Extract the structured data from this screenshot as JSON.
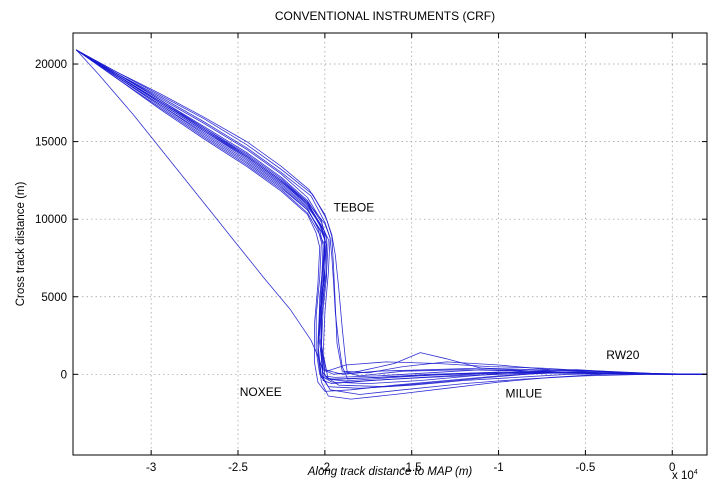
{
  "chart_data": {
    "type": "line",
    "title": "CONVENTIONAL INSTRUMENTS (CRF)",
    "xlabel": "Along track distance to MAP (m)",
    "ylabel": "Cross track distance (m)",
    "x_multiplier_label": "x 10",
    "x_multiplier_exponent": "4",
    "xlim": [
      -34500,
      2000
    ],
    "ylim": [
      -5200,
      22000
    ],
    "x_ticks": [
      -30000,
      -25000,
      -20000,
      -15000,
      -10000,
      -5000,
      0
    ],
    "x_tick_labels": [
      "-3",
      "-2.5",
      "-2",
      "-1.5",
      "-1",
      "-0.5",
      "0"
    ],
    "y_ticks": [
      0,
      5000,
      10000,
      15000,
      20000
    ],
    "y_tick_labels": [
      "0",
      "5000",
      "10000",
      "15000",
      "20000"
    ],
    "grid": true,
    "line_color": "#1a1ad0",
    "annotations": [
      {
        "text": "TEBOE",
        "x": -19500,
        "y": 10500
      },
      {
        "text": "NOXEE",
        "x": -24900,
        "y": -1400
      },
      {
        "text": "MILUE",
        "x": -9600,
        "y": -1500
      },
      {
        "text": "RW20",
        "x": -3800,
        "y": 1000
      }
    ],
    "series": [
      {
        "x": [
          -34300,
          -32000,
          -29500,
          -27000,
          -24500,
          -22500,
          -21000,
          -20200,
          -20000,
          -20100,
          -20300,
          -20400,
          -20200,
          -19500,
          -17000,
          -14000,
          -11000,
          -8000,
          -5000,
          -2000,
          0,
          2000
        ],
        "y": [
          20900,
          19300,
          17600,
          15800,
          14000,
          12400,
          11000,
          9600,
          8600,
          6800,
          4500,
          2000,
          -200,
          -300,
          -200,
          -50,
          50,
          100,
          80,
          40,
          0,
          0
        ]
      },
      {
        "x": [
          -34300,
          -32000,
          -29500,
          -27000,
          -24500,
          -22500,
          -21000,
          -20300,
          -20000,
          -20000,
          -20200,
          -20200,
          -20100,
          -19600,
          -17500,
          -14000,
          -10000,
          -6000,
          -2000,
          0,
          2000
        ],
        "y": [
          20900,
          19100,
          17200,
          15300,
          13500,
          11900,
          10400,
          9000,
          8300,
          6000,
          3500,
          1000,
          -400,
          -600,
          -400,
          -200,
          0,
          100,
          50,
          0,
          0
        ]
      },
      {
        "x": [
          -34300,
          -32000,
          -29500,
          -27000,
          -24500,
          -22500,
          -20800,
          -20000,
          -19700,
          -19800,
          -20000,
          -20100,
          -19800,
          -18500,
          -16000,
          -13000,
          -10000,
          -7000,
          -4000,
          -1000,
          2000
        ],
        "y": [
          20900,
          19400,
          17900,
          16300,
          14600,
          13000,
          11500,
          9800,
          8800,
          6500,
          4000,
          1200,
          -300,
          -500,
          -300,
          -100,
          100,
          150,
          100,
          30,
          0
        ]
      },
      {
        "x": [
          -34300,
          -32000,
          -29500,
          -27000,
          -24500,
          -22500,
          -21000,
          -20400,
          -20200,
          -20300,
          -20500,
          -20500,
          -20300,
          -19800,
          -18000,
          -15000,
          -12000,
          -9000,
          -6000,
          -3000,
          0,
          2000
        ],
        "y": [
          20900,
          19200,
          17400,
          15600,
          13800,
          12200,
          10700,
          9400,
          8500,
          6200,
          3800,
          1500,
          0,
          -800,
          -900,
          -700,
          -400,
          -200,
          0,
          50,
          0,
          0
        ]
      },
      {
        "x": [
          -34300,
          -32000,
          -29500,
          -27000,
          -24500,
          -22500,
          -21000,
          -20300,
          -20000,
          -20100,
          -20300,
          -20300,
          -20000,
          -19000,
          -17000,
          -14000,
          -11000,
          -8000,
          -5000,
          -2000,
          0,
          2000
        ],
        "y": [
          20900,
          19300,
          17600,
          15900,
          14100,
          12500,
          11100,
          9700,
          8900,
          7200,
          5000,
          2500,
          300,
          0,
          200,
          300,
          400,
          300,
          200,
          100,
          0,
          0
        ]
      },
      {
        "x": [
          -34300,
          -32000,
          -29500,
          -27000,
          -24500,
          -22500,
          -21000,
          -20200,
          -19900,
          -19900,
          -20100,
          -20200,
          -20100,
          -19700,
          -18000,
          -15500,
          -12000,
          -8500,
          -5000,
          -1500,
          2000
        ],
        "y": [
          20900,
          19200,
          17300,
          15400,
          13600,
          12000,
          10600,
          9200,
          8400,
          6300,
          4200,
          1800,
          -200,
          -1000,
          -1300,
          -1000,
          -600,
          -300,
          -100,
          0,
          0
        ]
      },
      {
        "x": [
          -34300,
          -32000,
          -29500,
          -27000,
          -24500,
          -22500,
          -21000,
          -20200,
          -20000,
          -20000,
          -20200,
          -20300,
          -20100,
          -19400,
          -17000,
          -14000,
          -11000,
          -8000,
          -5000,
          -2000,
          0,
          2000
        ],
        "y": [
          20900,
          19400,
          17800,
          16200,
          14500,
          12900,
          11400,
          9900,
          9000,
          6900,
          4600,
          2100,
          -100,
          -200,
          -100,
          100,
          300,
          200,
          100,
          50,
          0,
          0
        ]
      },
      {
        "x": [
          -34300,
          -32000,
          -29500,
          -27000,
          -24500,
          -22500,
          -21000,
          -20500,
          -20300,
          -20400,
          -20600,
          -20600,
          -20400,
          -20000,
          -18500,
          -16000,
          -13000,
          -10000,
          -7000,
          -4000,
          -1000,
          2000
        ],
        "y": [
          20900,
          19100,
          17100,
          15200,
          13400,
          11800,
          10300,
          9100,
          8200,
          5800,
          3200,
          800,
          -500,
          -1100,
          -1000,
          -700,
          -400,
          -100,
          100,
          100,
          0,
          0
        ]
      },
      {
        "x": [
          -34300,
          -32000,
          -29500,
          -27000,
          -24500,
          -22500,
          -20700,
          -19900,
          -19600,
          -19500,
          -19400,
          -19300,
          -19000,
          -17500,
          -15500,
          -13000,
          -10000,
          -7000,
          -4000,
          -1000,
          2000
        ],
        "y": [
          20900,
          19500,
          18000,
          16500,
          14800,
          13200,
          11600,
          10000,
          8900,
          7000,
          4500,
          2000,
          200,
          100,
          500,
          800,
          600,
          300,
          200,
          50,
          0
        ]
      },
      {
        "x": [
          -34300,
          -32000,
          -29500,
          -27000,
          -24500,
          -22500,
          -21000,
          -20100,
          -19800,
          -19900,
          -20200,
          -20200,
          -20000,
          -19200,
          -16500,
          -13500,
          -10500,
          -7500,
          -4500,
          -1500,
          2000
        ],
        "y": [
          20900,
          19300,
          17500,
          15700,
          13900,
          12300,
          10800,
          9400,
          8700,
          6600,
          4300,
          1700,
          -100,
          -700,
          -800,
          -500,
          -200,
          100,
          200,
          50,
          0
        ]
      },
      {
        "x": [
          -34300,
          -32000,
          -29500,
          -27000,
          -24500,
          -22500,
          -21000,
          -20300,
          -20000,
          -20000,
          -20300,
          -20400,
          -20200,
          -19600,
          -17500,
          -14500,
          -11500,
          -8500,
          -5500,
          -2500,
          0,
          2000
        ],
        "y": [
          20900,
          19300,
          17600,
          15800,
          14100,
          12500,
          11000,
          9600,
          8700,
          6400,
          4000,
          1500,
          -100,
          -500,
          -600,
          -400,
          -100,
          200,
          300,
          100,
          0,
          0
        ]
      },
      {
        "x": [
          -34300,
          -32000,
          -29500,
          -27000,
          -24500,
          -22500,
          -21000,
          -20000,
          -19700,
          -19600,
          -19500,
          -19400,
          -19200,
          -19000,
          -18800,
          -18700,
          -17000,
          -14000,
          -11000,
          -8000,
          -5000,
          -2000,
          0,
          2000
        ],
        "y": [
          20900,
          19400,
          17700,
          15900,
          14200,
          12600,
          11100,
          9700,
          8800,
          7600,
          6000,
          4000,
          2000,
          500,
          0,
          -300,
          -200,
          0,
          100,
          100,
          50,
          0,
          0,
          0
        ]
      },
      {
        "x": [
          -34300,
          -32000,
          -29500,
          -27000,
          -24500,
          -22500,
          -20900,
          -20000,
          -19600,
          -19400,
          -19200,
          -19000,
          -18800,
          -18700,
          -18000,
          -15500,
          -12000,
          -8000,
          -4000,
          0,
          2000
        ],
        "y": [
          20900,
          19500,
          18100,
          16600,
          15000,
          13400,
          11900,
          10300,
          9000,
          7700,
          5500,
          3000,
          800,
          100,
          -100,
          200,
          300,
          200,
          100,
          0,
          0
        ]
      },
      {
        "x": [
          -34300,
          -33000,
          -31000,
          -29500,
          -28000,
          -26500,
          -25000,
          -23500,
          -22000,
          -20800,
          -20300,
          -20100,
          -19800,
          -18500,
          -16000,
          -13000,
          -10000,
          -7000,
          -4000,
          -1000,
          2000
        ],
        "y": [
          20900,
          19300,
          16700,
          14600,
          12500,
          10400,
          8300,
          6200,
          4200,
          2200,
          900,
          100,
          -300,
          -400,
          -200,
          0,
          150,
          150,
          100,
          30,
          0
        ]
      },
      {
        "x": [
          -34300,
          -32000,
          -29500,
          -27000,
          -24500,
          -22500,
          -21000,
          -20300,
          -20100,
          -20200,
          -20300,
          -20100,
          -19500,
          -18000,
          -16000,
          -14500,
          -13000,
          -11000,
          -8000,
          -5000,
          -2000,
          0,
          2000
        ],
        "y": [
          20900,
          19200,
          17400,
          15500,
          13700,
          12100,
          10600,
          9300,
          8300,
          5500,
          2000,
          300,
          0,
          200,
          700,
          1400,
          1000,
          400,
          200,
          100,
          50,
          0,
          0
        ]
      },
      {
        "x": [
          -34300,
          -32000,
          -29500,
          -27000,
          -24500,
          -22500,
          -21000,
          -20200,
          -20000,
          -20100,
          -20300,
          -20400,
          -20200,
          -19800,
          -18500,
          -16000,
          -13000,
          -10000,
          -7000,
          -4000,
          -1000,
          0,
          2000
        ],
        "y": [
          20900,
          19300,
          17500,
          15700,
          14000,
          12400,
          10900,
          9500,
          8600,
          6100,
          3700,
          1300,
          -500,
          -1400,
          -1600,
          -1300,
          -900,
          -500,
          -200,
          0,
          50,
          0,
          0
        ]
      },
      {
        "x": [
          -34300,
          -32000,
          -29500,
          -27000,
          -24500,
          -22500,
          -21000,
          -20200,
          -19900,
          -20000,
          -20200,
          -20200,
          -19900,
          -18800,
          -16500,
          -13500,
          -10500,
          -7500,
          -4500,
          -1500,
          2000
        ],
        "y": [
          20900,
          19400,
          17700,
          16000,
          14300,
          12700,
          11200,
          9800,
          8800,
          6800,
          4400,
          1900,
          200,
          600,
          800,
          700,
          500,
          400,
          200,
          50,
          0
        ]
      }
    ]
  }
}
